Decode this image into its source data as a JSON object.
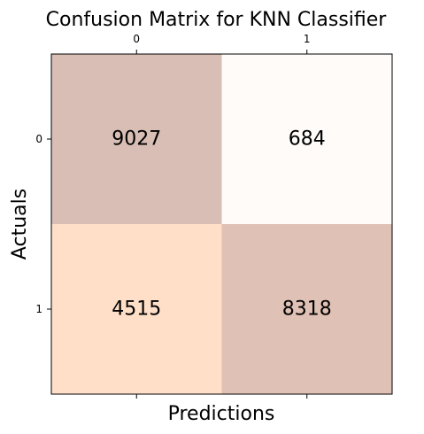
{
  "chart_data": {
    "type": "heatmap",
    "title": "Confusion Matrix for KNN Classifier",
    "xlabel": "Predictions",
    "ylabel": "Actuals",
    "x_ticks": [
      "0",
      "1"
    ],
    "y_ticks": [
      "0",
      "1"
    ],
    "x_tick_position": "top",
    "values": [
      [
        9027,
        684
      ],
      [
        4515,
        8318
      ]
    ],
    "cell_colors": [
      [
        "#d8beb4",
        "#fffbf9"
      ],
      [
        "#ffdfc8",
        "#e0c1b5"
      ]
    ],
    "grid": false,
    "colorbar": false
  }
}
